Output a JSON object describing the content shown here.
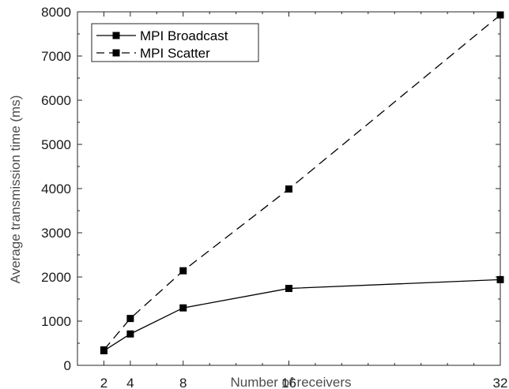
{
  "chart_data": {
    "type": "line",
    "title": "",
    "xlabel": "Number of receivers",
    "ylabel": "Average transmission time (ms)",
    "x": [
      2,
      4,
      8,
      16,
      32
    ],
    "xticks": [
      2,
      4,
      8,
      16,
      32
    ],
    "xlim": [
      0,
      32
    ],
    "ylim": [
      0,
      8000
    ],
    "yticks": [
      0,
      1000,
      2000,
      3000,
      4000,
      5000,
      6000,
      7000,
      8000
    ],
    "grid": false,
    "legend_position": "top-left",
    "series": [
      {
        "name": "MPI Broadcast",
        "values": [
          330,
          710,
          1300,
          1740,
          1940
        ],
        "line_style": "solid",
        "marker": "square",
        "color": "#000000"
      },
      {
        "name": "MPI Scatter",
        "values": [
          350,
          1060,
          2140,
          3990,
          7930
        ],
        "line_style": "dashed",
        "marker": "square",
        "color": "#000000"
      }
    ]
  }
}
